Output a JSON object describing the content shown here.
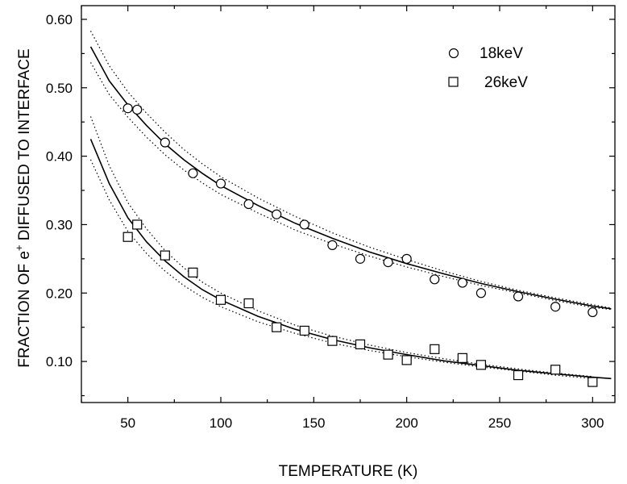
{
  "chart_data": {
    "type": "scatter",
    "xlabel": "TEMPERATURE (K)",
    "ylabel_main": "FRACTION OF e",
    "ylabel_sup": "+",
    "ylabel_rest": " DIFFUSED TO INTERFACE",
    "xlim": [
      25,
      312
    ],
    "ylim": [
      0.04,
      0.62
    ],
    "xticks": [
      50,
      100,
      150,
      200,
      250,
      300
    ],
    "xtick_labels": [
      "50",
      "100",
      "150",
      "200",
      "250",
      "300"
    ],
    "yticks": [
      0.1,
      0.2,
      0.3,
      0.4,
      0.5,
      0.6
    ],
    "ytick_labels": [
      "0.10",
      "0.20",
      "0.30",
      "0.40",
      "0.50",
      "0.60"
    ],
    "grid": false,
    "legend_position": "top-right",
    "series": [
      {
        "name": "18keV",
        "marker": "circle",
        "x": [
          50,
          55,
          70,
          85,
          100,
          115,
          130,
          145,
          160,
          175,
          190,
          200,
          215,
          230,
          240,
          260,
          280,
          300
        ],
        "y": [
          0.47,
          0.468,
          0.42,
          0.375,
          0.36,
          0.33,
          0.315,
          0.3,
          0.27,
          0.25,
          0.245,
          0.25,
          0.22,
          0.215,
          0.2,
          0.195,
          0.18,
          0.172
        ],
        "fit": {
          "x": [
            30,
            40,
            50,
            60,
            70,
            80,
            90,
            100,
            120,
            140,
            160,
            180,
            200,
            220,
            240,
            260,
            280,
            300,
            310
          ],
          "y": [
            0.56,
            0.51,
            0.475,
            0.445,
            0.418,
            0.395,
            0.375,
            0.357,
            0.328,
            0.302,
            0.28,
            0.26,
            0.243,
            0.228,
            0.214,
            0.202,
            0.191,
            0.181,
            0.177
          ]
        },
        "band_upper": {
          "x": [
            30,
            40,
            50,
            60,
            70,
            80,
            90,
            100,
            120,
            140,
            160,
            180,
            200,
            220,
            240,
            260,
            280,
            300,
            310
          ],
          "y": [
            0.583,
            0.532,
            0.494,
            0.463,
            0.435,
            0.41,
            0.389,
            0.37,
            0.339,
            0.312,
            0.288,
            0.267,
            0.249,
            0.232,
            0.217,
            0.204,
            0.193,
            0.183,
            0.178
          ]
        },
        "band_lower": {
          "x": [
            30,
            40,
            50,
            60,
            70,
            80,
            90,
            100,
            120,
            140,
            160,
            180,
            200,
            220,
            240,
            260,
            280,
            300,
            310
          ],
          "y": [
            0.537,
            0.49,
            0.457,
            0.428,
            0.402,
            0.38,
            0.361,
            0.344,
            0.317,
            0.292,
            0.272,
            0.254,
            0.238,
            0.224,
            0.211,
            0.2,
            0.189,
            0.179,
            0.176
          ]
        }
      },
      {
        "name": "26keV",
        "marker": "square",
        "x": [
          50,
          55,
          70,
          85,
          100,
          115,
          130,
          145,
          160,
          175,
          190,
          200,
          215,
          230,
          240,
          260,
          280,
          300
        ],
        "y": [
          0.282,
          0.3,
          0.255,
          0.23,
          0.19,
          0.185,
          0.15,
          0.145,
          0.13,
          0.125,
          0.11,
          0.102,
          0.118,
          0.105,
          0.095,
          0.08,
          0.088,
          0.07
        ],
        "fit": {
          "x": [
            30,
            40,
            50,
            60,
            70,
            80,
            90,
            100,
            120,
            140,
            160,
            180,
            200,
            220,
            240,
            260,
            280,
            300,
            310
          ],
          "y": [
            0.425,
            0.36,
            0.31,
            0.275,
            0.247,
            0.224,
            0.205,
            0.19,
            0.166,
            0.147,
            0.132,
            0.12,
            0.11,
            0.101,
            0.094,
            0.087,
            0.082,
            0.077,
            0.075
          ]
        },
        "band_upper": {
          "x": [
            30,
            40,
            50,
            60,
            70,
            80,
            90,
            100,
            120,
            140,
            160,
            180,
            200,
            220,
            240,
            260,
            280,
            300
          ],
          "y": [
            0.458,
            0.386,
            0.332,
            0.294,
            0.262,
            0.237,
            0.216,
            0.2,
            0.174,
            0.153,
            0.137,
            0.124,
            0.113,
            0.104,
            0.096,
            0.089,
            0.083,
            0.078
          ]
        },
        "band_lower": {
          "x": [
            30,
            40,
            50,
            60,
            70,
            80,
            90,
            100,
            120,
            140,
            160,
            180,
            200,
            220,
            240,
            260,
            280,
            300
          ],
          "y": [
            0.395,
            0.336,
            0.29,
            0.258,
            0.232,
            0.211,
            0.194,
            0.18,
            0.158,
            0.141,
            0.127,
            0.116,
            0.107,
            0.099,
            0.092,
            0.086,
            0.08,
            0.075
          ]
        }
      }
    ]
  }
}
